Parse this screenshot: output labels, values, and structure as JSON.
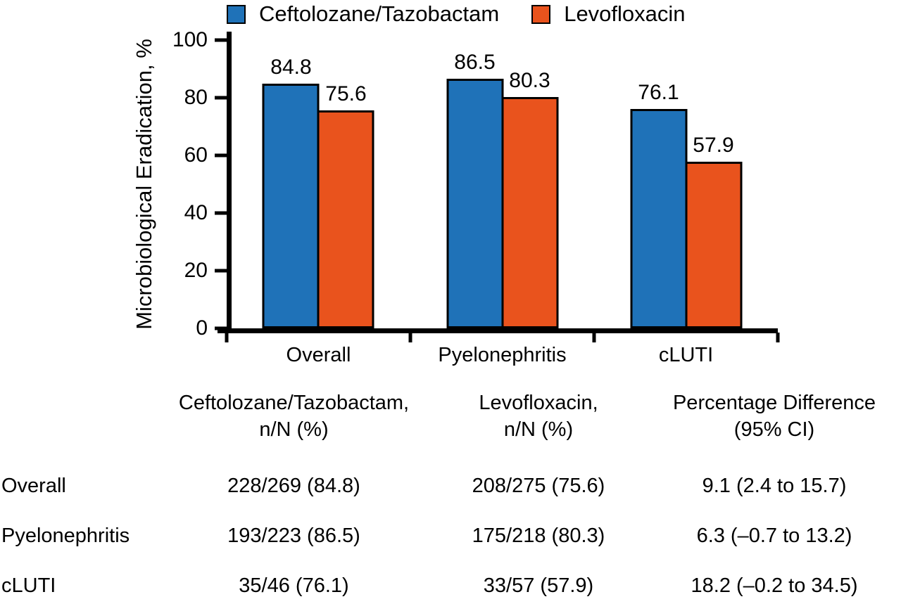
{
  "chart_data": {
    "type": "bar",
    "title": "",
    "ylabel": "Microbiological Eradication, %",
    "xlabel": "",
    "ylim": [
      0,
      100
    ],
    "yticks": [
      0,
      20,
      40,
      60,
      80,
      100
    ],
    "categories": [
      "Overall",
      "Pyelonephritis",
      "cLUTI"
    ],
    "series": [
      {
        "name": "Ceftolozane/Tazobactam",
        "color": "#1F72B8",
        "values": [
          84.8,
          86.5,
          76.1
        ]
      },
      {
        "name": "Levofloxacin",
        "color": "#E9531D",
        "values": [
          75.6,
          80.3,
          57.9
        ]
      }
    ],
    "bar_labels": true,
    "grid": false,
    "legend_position": "top"
  },
  "table": {
    "headers": {
      "col1": "Ceftolozane/Tazobactam,\nn/N (%)",
      "col2": "Levofloxacin,\nn/N (%)",
      "col3": "Percentage Difference\n(95% CI)"
    },
    "rows": [
      {
        "label": "Overall",
        "ct": "228/269 (84.8)",
        "levo": "208/275 (75.6)",
        "diff": "9.1 (2.4 to 15.7)"
      },
      {
        "label": "Pyelonephritis",
        "ct": "193/223 (86.5)",
        "levo": "175/218 (80.3)",
        "diff": "6.3 (–0.7 to 13.2)"
      },
      {
        "label": "cLUTI",
        "ct": "35/46 (76.1)",
        "levo": "33/57 (57.9)",
        "diff": "18.2 (–0.2 to 34.5)"
      }
    ]
  },
  "colors": {
    "series1": "#1F72B8",
    "series2": "#E9531D",
    "axis": "#000000"
  }
}
